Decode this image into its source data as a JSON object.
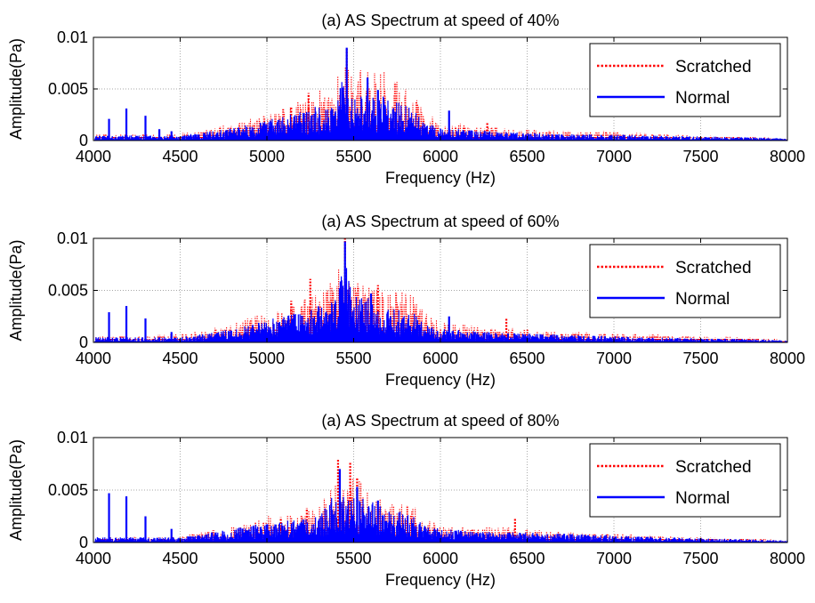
{
  "chart_data": [
    {
      "type": "line",
      "title": "(a) AS Spectrum at speed of 40%",
      "xlabel": "Frequency (Hz)",
      "ylabel": "Amplitude(Pa)",
      "xlim": [
        4000,
        8000
      ],
      "ylim": [
        0,
        0.01
      ],
      "xticks": [
        4000,
        4500,
        5000,
        5500,
        6000,
        6500,
        7000,
        7500,
        8000
      ],
      "yticks": [
        0,
        0.005,
        0.01
      ],
      "ytick_labels": [
        "0",
        "0.005",
        "0.01"
      ],
      "grid": true,
      "legend_position": "top-right",
      "series": [
        {
          "name": "Scratched",
          "color": "#ff0000",
          "style": "dotted",
          "envelope": {
            "x": [
              4000,
              4500,
              4800,
              5000,
              5200,
              5300,
              5400,
              5450,
              5500,
              5600,
              5700,
              5800,
              5850,
              5900,
              6000,
              6200,
              6400,
              6600,
              6800,
              7000,
              7200,
              7500,
              7800,
              8000
            ],
            "y": [
              0.0006,
              0.0007,
              0.0016,
              0.0026,
              0.0039,
              0.0052,
              0.0058,
              0.0089,
              0.0068,
              0.0071,
              0.0066,
              0.0059,
              0.0054,
              0.0032,
              0.0018,
              0.0015,
              0.0012,
              0.001,
              0.001,
              0.0009,
              0.0007,
              0.0005,
              0.0004,
              0.0002
            ]
          },
          "peaks": [
            {
              "x": 5140,
              "y": 0.0032
            },
            {
              "x": 5240,
              "y": 0.0046
            },
            {
              "x": 5460,
              "y": 0.0089
            },
            {
              "x": 5580,
              "y": 0.0057
            },
            {
              "x": 6270,
              "y": 0.0017
            }
          ]
        },
        {
          "name": "Normal",
          "color": "#0000ff",
          "style": "solid",
          "envelope": {
            "x": [
              4000,
              4500,
              4800,
              5000,
              5200,
              5300,
              5400,
              5450,
              5500,
              5600,
              5700,
              5800,
              5850,
              5900,
              6000,
              6200,
              6400,
              6600,
              6800,
              7000,
              7200,
              7500,
              7800,
              8000
            ],
            "y": [
              0.0005,
              0.0005,
              0.0012,
              0.002,
              0.0028,
              0.0034,
              0.004,
              0.007,
              0.0045,
              0.0047,
              0.0042,
              0.0034,
              0.003,
              0.0018,
              0.0012,
              0.001,
              0.0008,
              0.0007,
              0.0006,
              0.0006,
              0.0005,
              0.0004,
              0.0003,
              0.0002
            ]
          },
          "peaks": [
            {
              "x": 4090,
              "y": 0.0021
            },
            {
              "x": 4190,
              "y": 0.0031
            },
            {
              "x": 4300,
              "y": 0.0024
            },
            {
              "x": 4380,
              "y": 0.0011
            },
            {
              "x": 4450,
              "y": 0.0009
            },
            {
              "x": 5460,
              "y": 0.009
            },
            {
              "x": 5580,
              "y": 0.0061
            },
            {
              "x": 5640,
              "y": 0.0049
            },
            {
              "x": 6050,
              "y": 0.0029
            }
          ]
        }
      ]
    },
    {
      "type": "line",
      "title": "(a) AS Spectrum at speed of 60%",
      "xlabel": "Frequency (Hz)",
      "ylabel": "Amplitude(Pa)",
      "xlim": [
        4000,
        8000
      ],
      "ylim": [
        0,
        0.01
      ],
      "xticks": [
        4000,
        4500,
        5000,
        5500,
        6000,
        6500,
        7000,
        7500,
        8000
      ],
      "yticks": [
        0,
        0.005,
        0.01
      ],
      "ytick_labels": [
        "0",
        "0.005",
        "0.01"
      ],
      "grid": true,
      "legend_position": "top-right",
      "series": [
        {
          "name": "Scratched",
          "color": "#ff0000",
          "style": "dotted",
          "envelope": {
            "x": [
              4000,
              4500,
              4800,
              5000,
              5200,
              5300,
              5400,
              5450,
              5500,
              5600,
              5700,
              5800,
              5850,
              5900,
              6000,
              6200,
              6400,
              6600,
              6800,
              7000,
              7200,
              7500,
              7800,
              8000
            ],
            "y": [
              0.0006,
              0.0008,
              0.0018,
              0.003,
              0.0042,
              0.005,
              0.0062,
              0.0098,
              0.006,
              0.0052,
              0.005,
              0.0048,
              0.0047,
              0.003,
              0.002,
              0.0016,
              0.0014,
              0.0012,
              0.001,
              0.0009,
              0.0008,
              0.0006,
              0.0005,
              0.0003
            ]
          },
          "peaks": [
            {
              "x": 5140,
              "y": 0.004
            },
            {
              "x": 5250,
              "y": 0.0061
            },
            {
              "x": 5450,
              "y": 0.01
            },
            {
              "x": 5640,
              "y": 0.0055
            },
            {
              "x": 6380,
              "y": 0.0023
            }
          ]
        },
        {
          "name": "Normal",
          "color": "#0000ff",
          "style": "solid",
          "envelope": {
            "x": [
              4000,
              4500,
              4800,
              5000,
              5200,
              5300,
              5400,
              5450,
              5500,
              5600,
              5700,
              5800,
              5850,
              5900,
              6000,
              6200,
              6400,
              6600,
              6800,
              7000,
              7200,
              7500,
              7800,
              8000
            ],
            "y": [
              0.0005,
              0.0005,
              0.0013,
              0.0022,
              0.003,
              0.0036,
              0.0045,
              0.008,
              0.0048,
              0.0042,
              0.0035,
              0.003,
              0.0028,
              0.0018,
              0.0013,
              0.0011,
              0.0009,
              0.0008,
              0.0007,
              0.0006,
              0.0005,
              0.0004,
              0.0003,
              0.0002
            ]
          },
          "peaks": [
            {
              "x": 4090,
              "y": 0.0029
            },
            {
              "x": 4190,
              "y": 0.0035
            },
            {
              "x": 4300,
              "y": 0.0023
            },
            {
              "x": 4450,
              "y": 0.001
            },
            {
              "x": 5450,
              "y": 0.0097
            },
            {
              "x": 5600,
              "y": 0.0047
            },
            {
              "x": 6050,
              "y": 0.0025
            }
          ]
        }
      ]
    },
    {
      "type": "line",
      "title": "(a) AS Spectrum at speed of 80%",
      "xlabel": "Frequency (Hz)",
      "ylabel": "Amplitude(Pa)",
      "xlim": [
        4000,
        8000
      ],
      "ylim": [
        0,
        0.01
      ],
      "xticks": [
        4000,
        4500,
        5000,
        5500,
        6000,
        6500,
        7000,
        7500,
        8000
      ],
      "yticks": [
        0,
        0.005,
        0.01
      ],
      "ytick_labels": [
        "0",
        "0.005",
        "0.01"
      ],
      "grid": true,
      "legend_position": "top-right",
      "series": [
        {
          "name": "Scratched",
          "color": "#ff0000",
          "style": "dotted",
          "envelope": {
            "x": [
              4000,
              4500,
              4800,
              5000,
              5200,
              5300,
              5400,
              5450,
              5500,
              5600,
              5700,
              5800,
              5850,
              5900,
              6000,
              6200,
              6400,
              6600,
              6800,
              7000,
              7200,
              7500,
              7800,
              8000
            ],
            "y": [
              0.0005,
              0.0006,
              0.0016,
              0.0026,
              0.003,
              0.0034,
              0.0072,
              0.006,
              0.007,
              0.0048,
              0.004,
              0.0042,
              0.0036,
              0.0024,
              0.0018,
              0.0016,
              0.0015,
              0.0011,
              0.001,
              0.0009,
              0.0007,
              0.0005,
              0.0004,
              0.0002
            ]
          },
          "peaks": [
            {
              "x": 5080,
              "y": 0.0024
            },
            {
              "x": 5230,
              "y": 0.0033
            },
            {
              "x": 5410,
              "y": 0.008
            },
            {
              "x": 5480,
              "y": 0.0077
            },
            {
              "x": 5520,
              "y": 0.0062
            },
            {
              "x": 6430,
              "y": 0.0023
            }
          ]
        },
        {
          "name": "Normal",
          "color": "#0000ff",
          "style": "solid",
          "envelope": {
            "x": [
              4000,
              4500,
              4800,
              5000,
              5200,
              5300,
              5400,
              5450,
              5500,
              5600,
              5700,
              5800,
              5850,
              5900,
              6000,
              6200,
              6400,
              6600,
              6800,
              7000,
              7200,
              7500,
              7800,
              8000
            ],
            "y": [
              0.0005,
              0.0005,
              0.0013,
              0.0019,
              0.0022,
              0.0025,
              0.005,
              0.0042,
              0.0045,
              0.004,
              0.0033,
              0.0028,
              0.0025,
              0.0017,
              0.0013,
              0.0011,
              0.001,
              0.0009,
              0.0008,
              0.0007,
              0.0006,
              0.0004,
              0.0003,
              0.0002
            ]
          },
          "peaks": [
            {
              "x": 4090,
              "y": 0.0047
            },
            {
              "x": 4190,
              "y": 0.0044
            },
            {
              "x": 4300,
              "y": 0.0025
            },
            {
              "x": 4450,
              "y": 0.0013
            },
            {
              "x": 5420,
              "y": 0.007
            },
            {
              "x": 5520,
              "y": 0.0053
            },
            {
              "x": 5640,
              "y": 0.004
            }
          ]
        }
      ]
    }
  ]
}
